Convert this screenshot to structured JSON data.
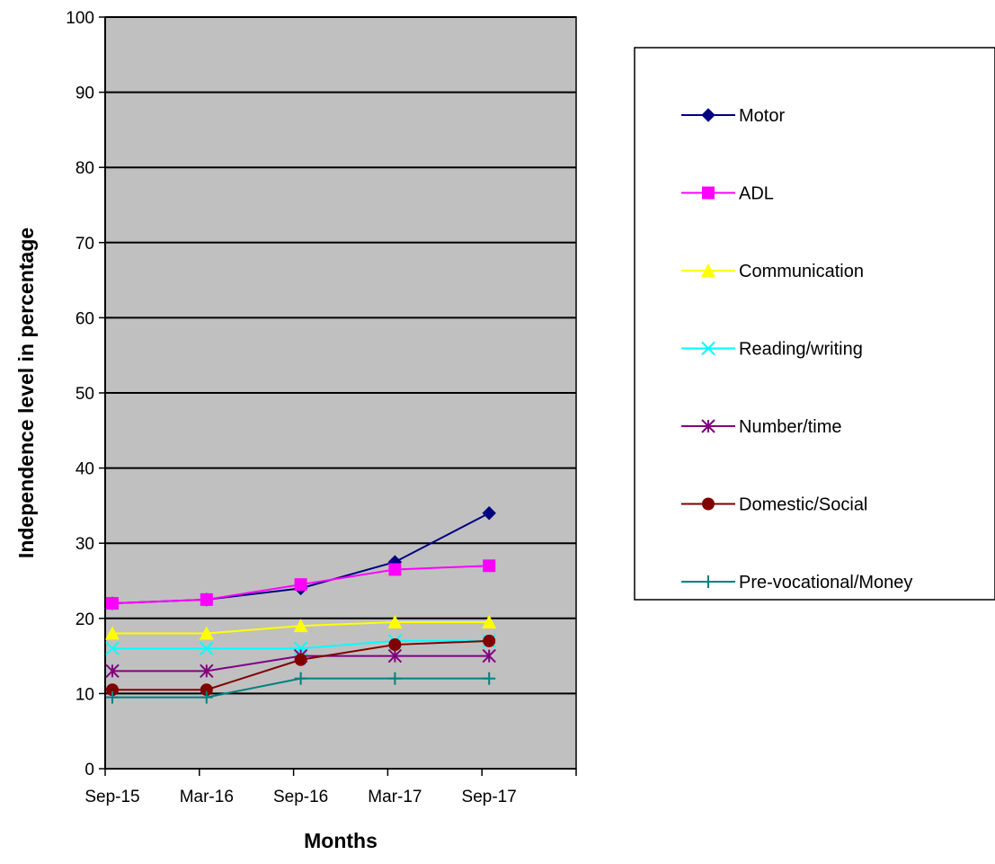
{
  "chart_data": {
    "type": "line",
    "title": "",
    "xlabel": "Months",
    "ylabel": "Independence level in percentage",
    "categories": [
      "Sep-15",
      "Mar-16",
      "Sep-16",
      "Mar-17",
      "Sep-17"
    ],
    "ylim": [
      0,
      100
    ],
    "yticks": [
      0,
      10,
      20,
      30,
      40,
      50,
      60,
      70,
      80,
      90,
      100
    ],
    "ytick_labels": [
      "0",
      "10",
      "20",
      "30",
      "40",
      "50",
      "60",
      "70",
      "80",
      "90",
      "100"
    ],
    "grid": true,
    "plot_background": "#c0c0c0",
    "legend_position": "right",
    "series": [
      {
        "name": "Motor",
        "color": "#000080",
        "marker": "diamond",
        "values": [
          22,
          22.5,
          24,
          27.5,
          34
        ]
      },
      {
        "name": "ADL",
        "color": "#ff00ff",
        "marker": "square",
        "values": [
          22,
          22.5,
          24.5,
          26.5,
          27
        ]
      },
      {
        "name": "Communication",
        "color": "#ffff00",
        "marker": "triangle",
        "values": [
          18,
          18,
          19,
          19.5,
          19.5
        ]
      },
      {
        "name": "Reading/writing",
        "color": "#00ffff",
        "marker": "x",
        "values": [
          16,
          16,
          16,
          17,
          17
        ]
      },
      {
        "name": "Number/time",
        "color": "#800080",
        "marker": "asterisk",
        "values": [
          13,
          13,
          15,
          15,
          15
        ]
      },
      {
        "name": "Domestic/Social",
        "color": "#800000",
        "marker": "circle",
        "values": [
          10.5,
          10.5,
          14.5,
          16.5,
          17
        ]
      },
      {
        "name": "Pre-vocational/Money",
        "color": "#008080",
        "marker": "plus",
        "values": [
          9.5,
          9.5,
          12,
          12,
          12
        ]
      }
    ]
  }
}
